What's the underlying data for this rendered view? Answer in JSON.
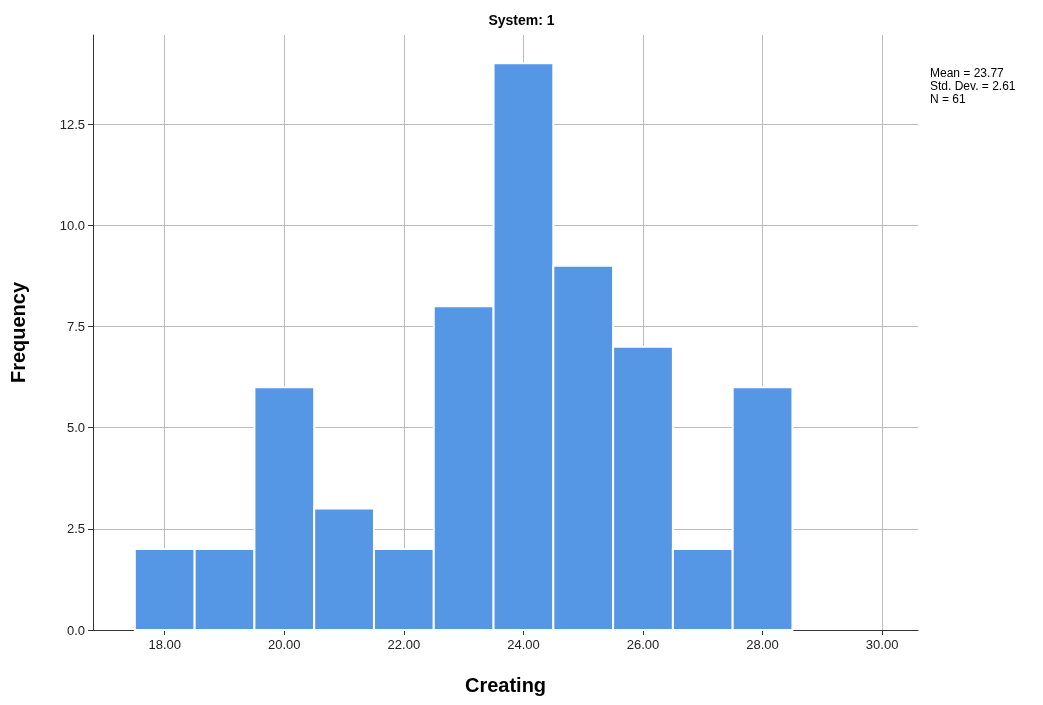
{
  "chart_data": {
    "type": "histogram",
    "title": "System: 1",
    "xlabel": "Creating",
    "ylabel": "Frequency",
    "bins": [
      17.5,
      18.5,
      19.5,
      20.5,
      21.5,
      22.5,
      23.5,
      24.5,
      25.5,
      26.5,
      27.5,
      28.5
    ],
    "values": [
      2,
      2,
      6,
      3,
      2,
      8,
      14,
      9,
      7,
      2,
      6
    ],
    "color": "#5596e5",
    "xlim": [
      16.8,
      30.6
    ],
    "xticks": [
      {
        "value": 18,
        "label": "18.00"
      },
      {
        "value": 20,
        "label": "20.00"
      },
      {
        "value": 22,
        "label": "22.00"
      },
      {
        "value": 24,
        "label": "24.00"
      },
      {
        "value": 26,
        "label": "26.00"
      },
      {
        "value": 28,
        "label": "28.00"
      },
      {
        "value": 30,
        "label": "30.00"
      }
    ],
    "ylim": [
      0,
      14.7
    ],
    "yticks": [
      {
        "value": 0,
        "label": "0.0"
      },
      2.5,
      {
        "value": 5,
        "label": "5.0"
      },
      7.5,
      {
        "value": 10,
        "label": "10.0"
      },
      12.5
    ],
    "grid": true,
    "annotations": [
      "Mean = 23.77",
      "Std. Dev. = 2.61",
      "N = 61"
    ]
  }
}
